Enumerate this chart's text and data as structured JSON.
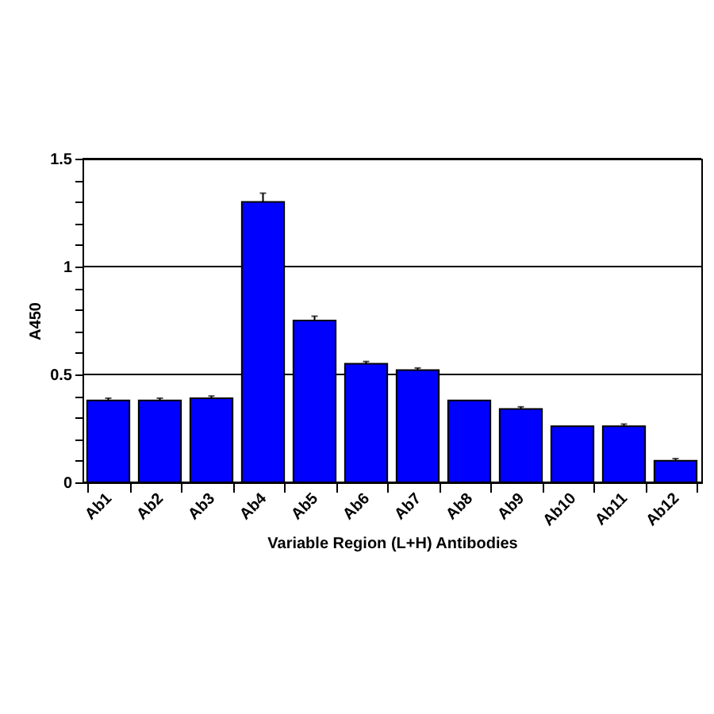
{
  "chart_data": {
    "type": "bar",
    "xlabel": "Variable Region (L+H) Antibodies",
    "ylabel": "A450",
    "categories": [
      "Ab1",
      "Ab2",
      "Ab3",
      "Ab4",
      "Ab5",
      "Ab6",
      "Ab7",
      "Ab8",
      "Ab9",
      "Ab10",
      "Ab11",
      "Ab12"
    ],
    "values": [
      0.38,
      0.38,
      0.39,
      1.3,
      0.75,
      0.55,
      0.52,
      0.38,
      0.34,
      0.26,
      0.26,
      0.1
    ],
    "errors": [
      0.01,
      0.01,
      0.01,
      0.04,
      0.02,
      0.01,
      0.01,
      null,
      0.01,
      null,
      0.01,
      0.01
    ],
    "color": "#0000ff",
    "ylim": [
      0,
      1.5
    ],
    "yticks": [
      0,
      {
        "value": 0.1,
        "label": null
      },
      {
        "value": 0.2,
        "label": null
      },
      {
        "value": 0.3,
        "label": null
      },
      {
        "value": 0.4,
        "label": null
      },
      0.5,
      {
        "value": 0.6,
        "label": null
      },
      {
        "value": 0.7,
        "label": null
      },
      {
        "value": 0.8,
        "label": null
      },
      {
        "value": 0.9,
        "label": null
      },
      1,
      {
        "value": 1.1,
        "label": null
      },
      {
        "value": 1.2,
        "label": null
      },
      {
        "value": 1.3,
        "label": null
      },
      {
        "value": 1.4,
        "label": null
      },
      1.5
    ],
    "grid": "y"
  }
}
